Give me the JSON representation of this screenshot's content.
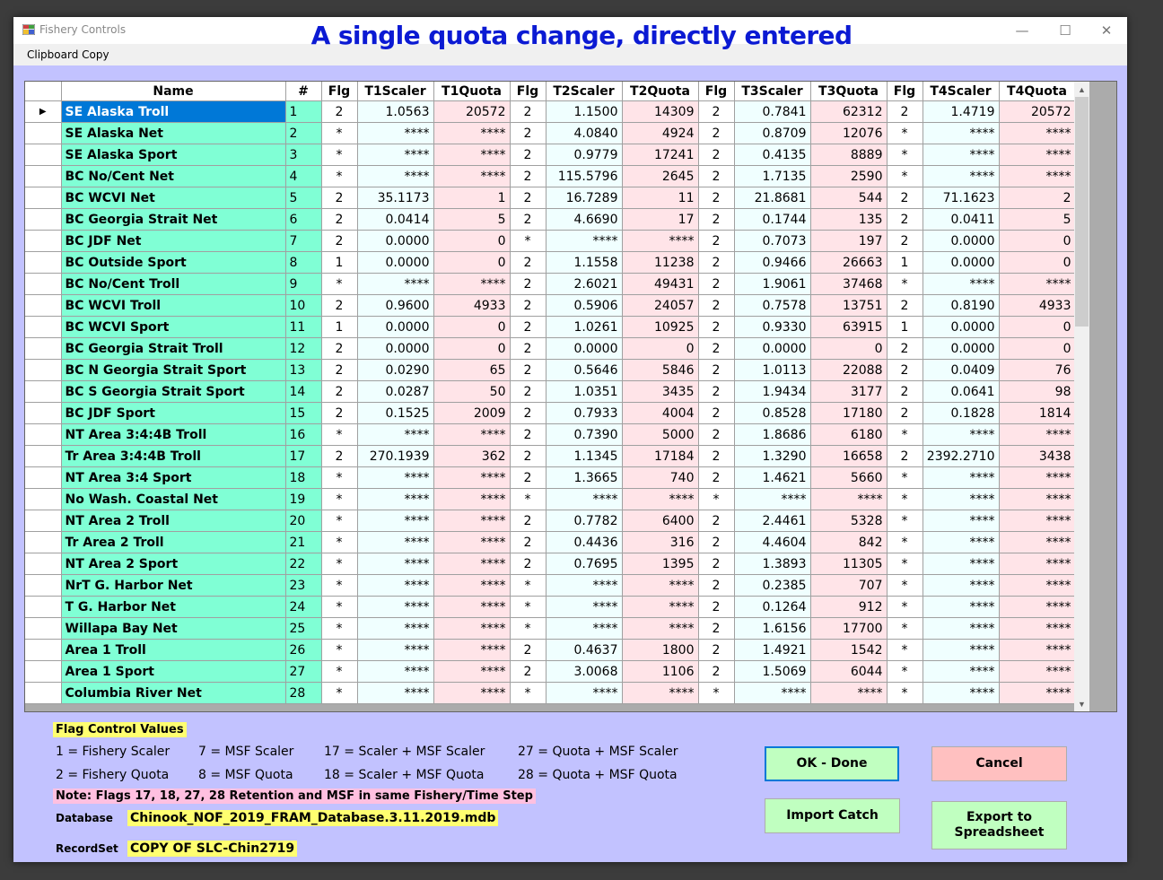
{
  "window": {
    "title": "Fishery Controls",
    "overlay_title": "A single quota change, directly entered",
    "minimize_glyph": "—",
    "maximize_glyph": "☐",
    "close_glyph": "✕"
  },
  "menu": {
    "clipboard_copy": "Clipboard Copy"
  },
  "grid": {
    "columns": [
      "Name",
      "#",
      "Flg",
      "T1Scaler",
      "T1Quota",
      "Flg",
      "T2Scaler",
      "T2Quota",
      "Flg",
      "T3Scaler",
      "T3Quota",
      "Flg",
      "T4Scaler",
      "T4Quota"
    ],
    "selected_row_marker": "▶",
    "rows": [
      [
        "SE Alaska Troll",
        "1",
        "2",
        "1.0563",
        "20572",
        "2",
        "1.1500",
        "14309",
        "2",
        "0.7841",
        "62312",
        "2",
        "1.4719",
        "20572"
      ],
      [
        "SE Alaska Net",
        "2",
        "*",
        "****",
        "****",
        "2",
        "4.0840",
        "4924",
        "2",
        "0.8709",
        "12076",
        "*",
        "****",
        "****"
      ],
      [
        "SE Alaska Sport",
        "3",
        "*",
        "****",
        "****",
        "2",
        "0.9779",
        "17241",
        "2",
        "0.4135",
        "8889",
        "*",
        "****",
        "****"
      ],
      [
        "BC No/Cent Net",
        "4",
        "*",
        "****",
        "****",
        "2",
        "115.5796",
        "2645",
        "2",
        "1.7135",
        "2590",
        "*",
        "****",
        "****"
      ],
      [
        "BC WCVI Net",
        "5",
        "2",
        "35.1173",
        "1",
        "2",
        "16.7289",
        "11",
        "2",
        "21.8681",
        "544",
        "2",
        "71.1623",
        "2"
      ],
      [
        "BC Georgia Strait Net",
        "6",
        "2",
        "0.0414",
        "5",
        "2",
        "4.6690",
        "17",
        "2",
        "0.1744",
        "135",
        "2",
        "0.0411",
        "5"
      ],
      [
        "BC JDF Net",
        "7",
        "2",
        "0.0000",
        "0",
        "*",
        "****",
        "****",
        "2",
        "0.7073",
        "197",
        "2",
        "0.0000",
        "0"
      ],
      [
        "BC Outside Sport",
        "8",
        "1",
        "0.0000",
        "0",
        "2",
        "1.1558",
        "11238",
        "2",
        "0.9466",
        "26663",
        "1",
        "0.0000",
        "0"
      ],
      [
        "BC No/Cent Troll",
        "9",
        "*",
        "****",
        "****",
        "2",
        "2.6021",
        "49431",
        "2",
        "1.9061",
        "37468",
        "*",
        "****",
        "****"
      ],
      [
        "BC WCVI Troll",
        "10",
        "2",
        "0.9600",
        "4933",
        "2",
        "0.5906",
        "24057",
        "2",
        "0.7578",
        "13751",
        "2",
        "0.8190",
        "4933"
      ],
      [
        "BC WCVI Sport",
        "11",
        "1",
        "0.0000",
        "0",
        "2",
        "1.0261",
        "10925",
        "2",
        "0.9330",
        "63915",
        "1",
        "0.0000",
        "0"
      ],
      [
        "BC Georgia Strait Troll",
        "12",
        "2",
        "0.0000",
        "0",
        "2",
        "0.0000",
        "0",
        "2",
        "0.0000",
        "0",
        "2",
        "0.0000",
        "0"
      ],
      [
        "BC N Georgia Strait Sport",
        "13",
        "2",
        "0.0290",
        "65",
        "2",
        "0.5646",
        "5846",
        "2",
        "1.0113",
        "22088",
        "2",
        "0.0409",
        "76"
      ],
      [
        "BC S Georgia Strait Sport",
        "14",
        "2",
        "0.0287",
        "50",
        "2",
        "1.0351",
        "3435",
        "2",
        "1.9434",
        "3177",
        "2",
        "0.0641",
        "98"
      ],
      [
        "BC JDF Sport",
        "15",
        "2",
        "0.1525",
        "2009",
        "2",
        "0.7933",
        "4004",
        "2",
        "0.8528",
        "17180",
        "2",
        "0.1828",
        "1814"
      ],
      [
        "NT Area 3:4:4B Troll",
        "16",
        "*",
        "****",
        "****",
        "2",
        "0.7390",
        "5000",
        "2",
        "1.8686",
        "6180",
        "*",
        "****",
        "****"
      ],
      [
        "Tr Area 3:4:4B Troll",
        "17",
        "2",
        "270.1939",
        "362",
        "2",
        "1.1345",
        "17184",
        "2",
        "1.3290",
        "16658",
        "2",
        "2392.2710",
        "3438"
      ],
      [
        "NT Area 3:4 Sport",
        "18",
        "*",
        "****",
        "****",
        "2",
        "1.3665",
        "740",
        "2",
        "1.4621",
        "5660",
        "*",
        "****",
        "****"
      ],
      [
        "No Wash. Coastal Net",
        "19",
        "*",
        "****",
        "****",
        "*",
        "****",
        "****",
        "*",
        "****",
        "****",
        "*",
        "****",
        "****"
      ],
      [
        "NT Area 2 Troll",
        "20",
        "*",
        "****",
        "****",
        "2",
        "0.7782",
        "6400",
        "2",
        "2.4461",
        "5328",
        "*",
        "****",
        "****"
      ],
      [
        "Tr Area 2 Troll",
        "21",
        "*",
        "****",
        "****",
        "2",
        "0.4436",
        "316",
        "2",
        "4.4604",
        "842",
        "*",
        "****",
        "****"
      ],
      [
        "NT Area 2 Sport",
        "22",
        "*",
        "****",
        "****",
        "2",
        "0.7695",
        "1395",
        "2",
        "1.3893",
        "11305",
        "*",
        "****",
        "****"
      ],
      [
        "NrT G. Harbor Net",
        "23",
        "*",
        "****",
        "****",
        "*",
        "****",
        "****",
        "2",
        "0.2385",
        "707",
        "*",
        "****",
        "****"
      ],
      [
        "T G. Harbor Net",
        "24",
        "*",
        "****",
        "****",
        "*",
        "****",
        "****",
        "2",
        "0.1264",
        "912",
        "*",
        "****",
        "****"
      ],
      [
        "Willapa Bay Net",
        "25",
        "*",
        "****",
        "****",
        "*",
        "****",
        "****",
        "2",
        "1.6156",
        "17700",
        "*",
        "****",
        "****"
      ],
      [
        "Area 1 Troll",
        "26",
        "*",
        "****",
        "****",
        "2",
        "0.4637",
        "1800",
        "2",
        "1.4921",
        "1542",
        "*",
        "****",
        "****"
      ],
      [
        "Area 1 Sport",
        "27",
        "*",
        "****",
        "****",
        "2",
        "3.0068",
        "1106",
        "2",
        "1.5069",
        "6044",
        "*",
        "****",
        "****"
      ],
      [
        "Columbia River Net",
        "28",
        "*",
        "****",
        "****",
        "*",
        "****",
        "****",
        "*",
        "****",
        "****",
        "*",
        "****",
        "****"
      ]
    ]
  },
  "scrollbar": {
    "up_glyph": "▲",
    "down_glyph": "▼"
  },
  "legend": {
    "heading": "Flag Control Values",
    "items": [
      "1 = Fishery Scaler",
      "2 = Fishery Quota",
      "7 = MSF Scaler",
      "8 = MSF Quota",
      "17 = Scaler + MSF Scaler",
      "18 = Scaler + MSF Quota",
      "27 = Quota + MSF Scaler",
      "28 = Quota + MSF Quota"
    ],
    "note": "Note: Flags 17, 18, 27, 28 Retention and MSF in same Fishery/Time Step"
  },
  "info": {
    "database_label": "Database",
    "database_value": "Chinook_NOF_2019_FRAM_Database.3.11.2019.mdb",
    "recordset_label": "RecordSet",
    "recordset_value": "COPY OF SLC-Chin2719"
  },
  "buttons": {
    "ok_done": "OK - Done",
    "cancel": "Cancel",
    "import_catch": "Import Catch",
    "export_line1": "Export to",
    "export_line2": "Spreadsheet"
  },
  "colors": {
    "title_blue": "#0b1ad3",
    "client_bg": "#c2c2ff",
    "name_cell": "#80ffd5",
    "selected_cell": "#0078d7",
    "scaler_cell": "#f0ffff",
    "quota_cell": "#ffe4e8",
    "ok_button": "#c0ffc0",
    "cancel_button": "#ffc0c0",
    "highlight_yellow": "#ffff70",
    "highlight_pink": "#ffc0e0"
  }
}
